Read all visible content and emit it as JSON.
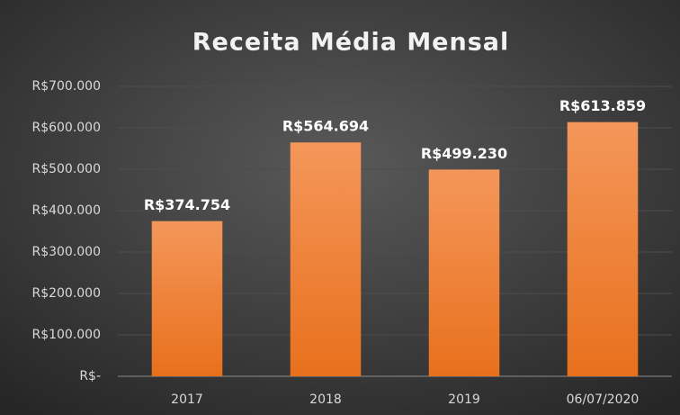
{
  "chart_data": {
    "type": "bar",
    "title": "Receita Média Mensal",
    "categories": [
      "2017",
      "2018",
      "2019",
      "06/07/2020"
    ],
    "values": [
      374754,
      564694,
      499230,
      613859
    ],
    "value_labels": [
      "R$374.754",
      "R$564.694",
      "R$499.230",
      "R$613.859"
    ],
    "color": "#f07c2a",
    "ylim": [
      0,
      700000
    ],
    "yticks": [
      {
        "value": 0,
        "label": "R$-"
      },
      {
        "value": 100000,
        "label": "R$100.000"
      },
      {
        "value": 200000,
        "label": "R$200.000"
      },
      {
        "value": 300000,
        "label": "R$300.000"
      },
      {
        "value": 400000,
        "label": "R$400.000"
      },
      {
        "value": 500000,
        "label": "R$500.000"
      },
      {
        "value": 600000,
        "label": "R$600.000"
      },
      {
        "value": 700000,
        "label": "R$700.000"
      }
    ],
    "grid": true
  }
}
